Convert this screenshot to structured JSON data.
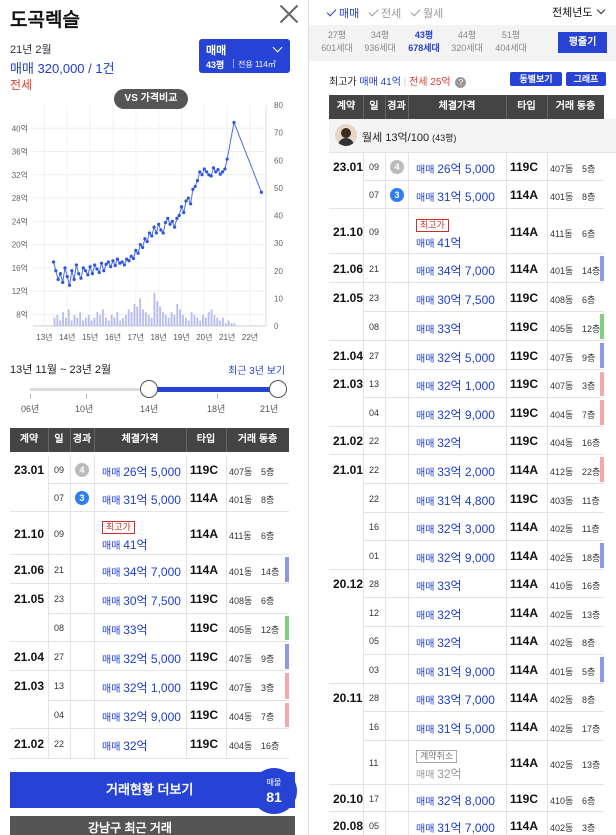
{
  "left": {
    "title": "도곡렉슬",
    "date_line": "21년 2월",
    "price_line": "매매 320,000 / 1건",
    "type_line": "전세",
    "type_button": {
      "main": "매매",
      "size": "43평",
      "area": "전용 114㎡"
    },
    "vs_button": "VS 가격비교",
    "range_text": "13년 11월 ~ 23년 2월",
    "recent_link": "최근 3년 보기",
    "slider": {
      "ticks": [
        "06년",
        "10년",
        "14년",
        "18년",
        "21년"
      ],
      "start": 14,
      "end": 21
    },
    "more_button": "거래현황 더보기",
    "count": {
      "label": "매물",
      "value": "81"
    },
    "bottom_button": "강남구 최근 거래"
  },
  "table_headers": [
    "계약",
    "일",
    "경과",
    "체결가격",
    "타입",
    "거래 동층"
  ],
  "left_rows": [
    {
      "date": "23.01",
      "day": "09",
      "badge": "4",
      "badge_color": "gray",
      "kind": "매매",
      "price": "26억 5,000",
      "type": "119C",
      "bldg": "407동",
      "floor": "5층"
    },
    {
      "date": "",
      "day": "07",
      "badge": "3",
      "badge_color": "blue",
      "kind": "매매",
      "price": "31억 5,000",
      "type": "114A",
      "bldg": "401동",
      "floor": "8층"
    },
    {
      "date": "21.10",
      "day": "09",
      "tag": "최고가",
      "kind": "매매",
      "price": "41억",
      "type": "114A",
      "bldg": "411동",
      "floor": "6층"
    },
    {
      "date": "21.06",
      "day": "21",
      "kind": "매매",
      "price": "34억 7,000",
      "type": "114A",
      "bldg": "401동",
      "floor": "14층",
      "ind": "blue"
    },
    {
      "date": "21.05",
      "day": "23",
      "kind": "매매",
      "price": "30억 7,500",
      "type": "119C",
      "bldg": "408동",
      "floor": "6층"
    },
    {
      "date": "",
      "day": "08",
      "kind": "매매",
      "price": "33억",
      "type": "119C",
      "bldg": "405동",
      "floor": "12층",
      "ind": "green"
    },
    {
      "date": "21.04",
      "day": "27",
      "kind": "매매",
      "price": "32억 5,000",
      "type": "119C",
      "bldg": "407동",
      "floor": "9층",
      "ind": "blue"
    },
    {
      "date": "21.03",
      "day": "13",
      "kind": "매매",
      "price": "32억 1,000",
      "type": "119C",
      "bldg": "407동",
      "floor": "3층",
      "ind": "pink"
    },
    {
      "date": "",
      "day": "04",
      "kind": "매매",
      "price": "32억 9,000",
      "type": "119C",
      "bldg": "404동",
      "floor": "7층",
      "ind": "pink"
    },
    {
      "date": "21.02",
      "day": "22",
      "kind": "매매",
      "price": "32억",
      "type": "119C",
      "bldg": "404동",
      "floor": "16층"
    }
  ],
  "right": {
    "tabs": [
      "매매",
      "전세",
      "월세"
    ],
    "year_select": "전체년도",
    "areas": [
      {
        "p": "27평",
        "h": "601세대"
      },
      {
        "p": "34평",
        "h": "936세대"
      },
      {
        "p": "43평",
        "h": "678세대"
      },
      {
        "p": "44평",
        "h": "320세대"
      },
      {
        "p": "51평",
        "h": "404세대"
      }
    ],
    "pyeong_button": "평줄기",
    "max_label": "최고가",
    "max_sale": "매매 41억",
    "max_rent": "전세 25억",
    "help_icon": "?",
    "btn_dong": "동별보기",
    "btn_graph": "그래프",
    "rent_text": "월세 13억/100",
    "rent_size": "(43평)"
  },
  "right_rows": [
    {
      "date": "23.01",
      "day": "09",
      "badge": "4",
      "badge_color": "gray",
      "kind": "매매",
      "price": "26억 5,000",
      "type": "119C",
      "bldg": "407동",
      "floor": "5층"
    },
    {
      "date": "",
      "day": "07",
      "badge": "3",
      "badge_color": "blue",
      "kind": "매매",
      "price": "31억 5,000",
      "type": "114A",
      "bldg": "401동",
      "floor": "8층"
    },
    {
      "date": "21.10",
      "day": "09",
      "tag": "최고가",
      "kind": "매매",
      "price": "41억",
      "type": "114A",
      "bldg": "411동",
      "floor": "6층"
    },
    {
      "date": "21.06",
      "day": "21",
      "kind": "매매",
      "price": "34억 7,000",
      "type": "114A",
      "bldg": "401동",
      "floor": "14층",
      "ind": "blue"
    },
    {
      "date": "21.05",
      "day": "23",
      "kind": "매매",
      "price": "30억 7,500",
      "type": "119C",
      "bldg": "408동",
      "floor": "6층"
    },
    {
      "date": "",
      "day": "08",
      "kind": "매매",
      "price": "33억",
      "type": "119C",
      "bldg": "405동",
      "floor": "12층",
      "ind": "green"
    },
    {
      "date": "21.04",
      "day": "27",
      "kind": "매매",
      "price": "32억 5,000",
      "type": "119C",
      "bldg": "407동",
      "floor": "9층",
      "ind": "blue"
    },
    {
      "date": "21.03",
      "day": "13",
      "kind": "매매",
      "price": "32억 1,000",
      "type": "119C",
      "bldg": "407동",
      "floor": "3층",
      "ind": "pink"
    },
    {
      "date": "",
      "day": "04",
      "kind": "매매",
      "price": "32억 9,000",
      "type": "119C",
      "bldg": "404동",
      "floor": "7층",
      "ind": "pink"
    },
    {
      "date": "21.02",
      "day": "22",
      "kind": "매매",
      "price": "32억",
      "type": "119C",
      "bldg": "404동",
      "floor": "16층"
    },
    {
      "date": "21.01",
      "day": "22",
      "kind": "매매",
      "price": "33억 2,000",
      "type": "114A",
      "bldg": "412동",
      "floor": "22층",
      "ind": "pink"
    },
    {
      "date": "",
      "day": "22",
      "kind": "매매",
      "price": "31억 4,800",
      "type": "119C",
      "bldg": "403동",
      "floor": "11층"
    },
    {
      "date": "",
      "day": "16",
      "kind": "매매",
      "price": "32억 3,000",
      "type": "114A",
      "bldg": "402동",
      "floor": "11층"
    },
    {
      "date": "",
      "day": "01",
      "kind": "매매",
      "price": "32억 9,000",
      "type": "114A",
      "bldg": "402동",
      "floor": "18층",
      "ind": "blue"
    },
    {
      "date": "20.12",
      "day": "28",
      "kind": "매매",
      "price": "33억",
      "type": "114A",
      "bldg": "410동",
      "floor": "16층"
    },
    {
      "date": "",
      "day": "12",
      "kind": "매매",
      "price": "32억",
      "type": "114A",
      "bldg": "402동",
      "floor": "13층"
    },
    {
      "date": "",
      "day": "05",
      "kind": "매매",
      "price": "32억",
      "type": "114A",
      "bldg": "402동",
      "floor": "8층"
    },
    {
      "date": "",
      "day": "03",
      "kind": "매매",
      "price": "31억 9,000",
      "type": "114A",
      "bldg": "401동",
      "floor": "5층",
      "ind": "blue"
    },
    {
      "date": "20.11",
      "day": "28",
      "kind": "매매",
      "price": "33억 7,000",
      "type": "114A",
      "bldg": "402동",
      "floor": "8층"
    },
    {
      "date": "",
      "day": "16",
      "kind": "매매",
      "price": "31억 5,000",
      "type": "114A",
      "bldg": "402동",
      "floor": "17층"
    },
    {
      "date": "",
      "day": "11",
      "tag_cancel": "계약취소",
      "kind": "매매",
      "price": "32억",
      "gray": true,
      "type": "114A",
      "bldg": "402동",
      "floor": "13층"
    },
    {
      "date": "20.10",
      "day": "17",
      "kind": "매매",
      "price": "32억 8,000",
      "type": "119C",
      "bldg": "410동",
      "floor": "6층"
    },
    {
      "date": "20.08",
      "day": "05",
      "kind": "매매",
      "price": "31억 7,000",
      "type": "114A",
      "bldg": "402동",
      "floor": "3층"
    }
  ],
  "colors": {
    "accent": "#2643d6",
    "price_blue": "#1e3ecf",
    "red": "#e03a2f",
    "ind_blue": "#8b98e6",
    "ind_green": "#7ed07e",
    "ind_pink": "#f1a9a9"
  },
  "chart_data": {
    "type": "line",
    "x_ticks": [
      "13년",
      "14년",
      "15년",
      "16년",
      "17년",
      "18년",
      "19년",
      "20년",
      "21년",
      "22년"
    ],
    "y_left_ticks": [
      "8억",
      "12억",
      "16억",
      "20억",
      "24억",
      "28억",
      "32억",
      "36억",
      "40억"
    ],
    "y_right_ticks": [
      "0",
      "10",
      "20",
      "30",
      "40",
      "50",
      "60",
      "70",
      "80"
    ],
    "y_left_range": [
      6,
      44
    ],
    "y_right_range": [
      0,
      80
    ],
    "x_range": [
      2013.0,
      2023.2
    ],
    "price_series": [
      [
        2013.9,
        17
      ],
      [
        2014.0,
        15.5
      ],
      [
        2014.1,
        14
      ],
      [
        2014.2,
        15
      ],
      [
        2014.3,
        13.5
      ],
      [
        2014.4,
        16
      ],
      [
        2014.5,
        14.5
      ],
      [
        2014.6,
        13
      ],
      [
        2014.7,
        15.5
      ],
      [
        2014.8,
        14
      ],
      [
        2014.9,
        16.5
      ],
      [
        2015.0,
        15
      ],
      [
        2015.1,
        14.2
      ],
      [
        2015.2,
        16
      ],
      [
        2015.3,
        15.5
      ],
      [
        2015.4,
        14.8
      ],
      [
        2015.5,
        16.2
      ],
      [
        2015.6,
        15
      ],
      [
        2015.7,
        16.5
      ],
      [
        2015.8,
        15.8
      ],
      [
        2015.9,
        15.2
      ],
      [
        2016.0,
        16.8
      ],
      [
        2016.1,
        15.5
      ],
      [
        2016.2,
        16.6
      ],
      [
        2016.3,
        17
      ],
      [
        2016.4,
        16.2
      ],
      [
        2016.5,
        17.2
      ],
      [
        2016.6,
        16.4
      ],
      [
        2016.7,
        17.5
      ],
      [
        2016.8,
        16.8
      ],
      [
        2016.9,
        17
      ],
      [
        2017.0,
        16.5
      ],
      [
        2017.1,
        17.5
      ],
      [
        2017.2,
        17.2
      ],
      [
        2017.3,
        18
      ],
      [
        2017.4,
        17.6
      ],
      [
        2017.5,
        19
      ],
      [
        2017.6,
        18.5
      ],
      [
        2017.7,
        20
      ],
      [
        2017.8,
        19.5
      ],
      [
        2017.9,
        21
      ],
      [
        2018.0,
        20.5
      ],
      [
        2018.1,
        22
      ],
      [
        2018.2,
        21.5
      ],
      [
        2018.3,
        23
      ],
      [
        2018.4,
        22
      ],
      [
        2018.5,
        23.5
      ],
      [
        2018.6,
        22.5
      ],
      [
        2018.7,
        22
      ],
      [
        2018.8,
        23.8
      ],
      [
        2018.9,
        24.5
      ],
      [
        2019.0,
        23.5
      ],
      [
        2019.1,
        24
      ],
      [
        2019.2,
        23
      ],
      [
        2019.3,
        24.5
      ],
      [
        2019.4,
        25
      ],
      [
        2019.5,
        26.5
      ],
      [
        2019.6,
        25.5
      ],
      [
        2019.7,
        27.5
      ],
      [
        2019.8,
        28
      ],
      [
        2019.9,
        27
      ],
      [
        2020.0,
        29.5
      ],
      [
        2020.1,
        30
      ],
      [
        2020.2,
        31
      ],
      [
        2020.3,
        32.5
      ],
      [
        2020.4,
        32
      ],
      [
        2020.5,
        33
      ],
      [
        2020.6,
        32.5
      ],
      [
        2020.7,
        32
      ],
      [
        2020.8,
        31.8
      ],
      [
        2020.9,
        33.2
      ],
      [
        2021.0,
        32.5
      ],
      [
        2021.1,
        32.9
      ],
      [
        2021.2,
        32.1
      ],
      [
        2021.3,
        32.5
      ],
      [
        2021.4,
        33
      ],
      [
        2021.5,
        34.7
      ],
      [
        2021.8,
        41
      ],
      [
        2023.0,
        29
      ]
    ],
    "volume_bars": [
      3,
      4,
      2,
      5,
      3,
      6,
      2,
      4,
      3,
      5,
      2,
      3,
      4,
      2,
      3,
      5,
      4,
      6,
      3,
      2,
      4,
      3,
      5,
      2,
      3,
      4,
      6,
      5,
      8,
      7,
      10,
      6,
      5,
      4,
      3,
      12,
      9,
      7,
      5,
      4,
      3,
      5,
      4,
      8,
      6,
      4,
      3,
      2,
      5,
      4,
      3,
      2,
      4,
      3,
      5,
      6,
      4,
      3,
      2,
      3,
      1,
      2,
      1,
      1
    ]
  }
}
